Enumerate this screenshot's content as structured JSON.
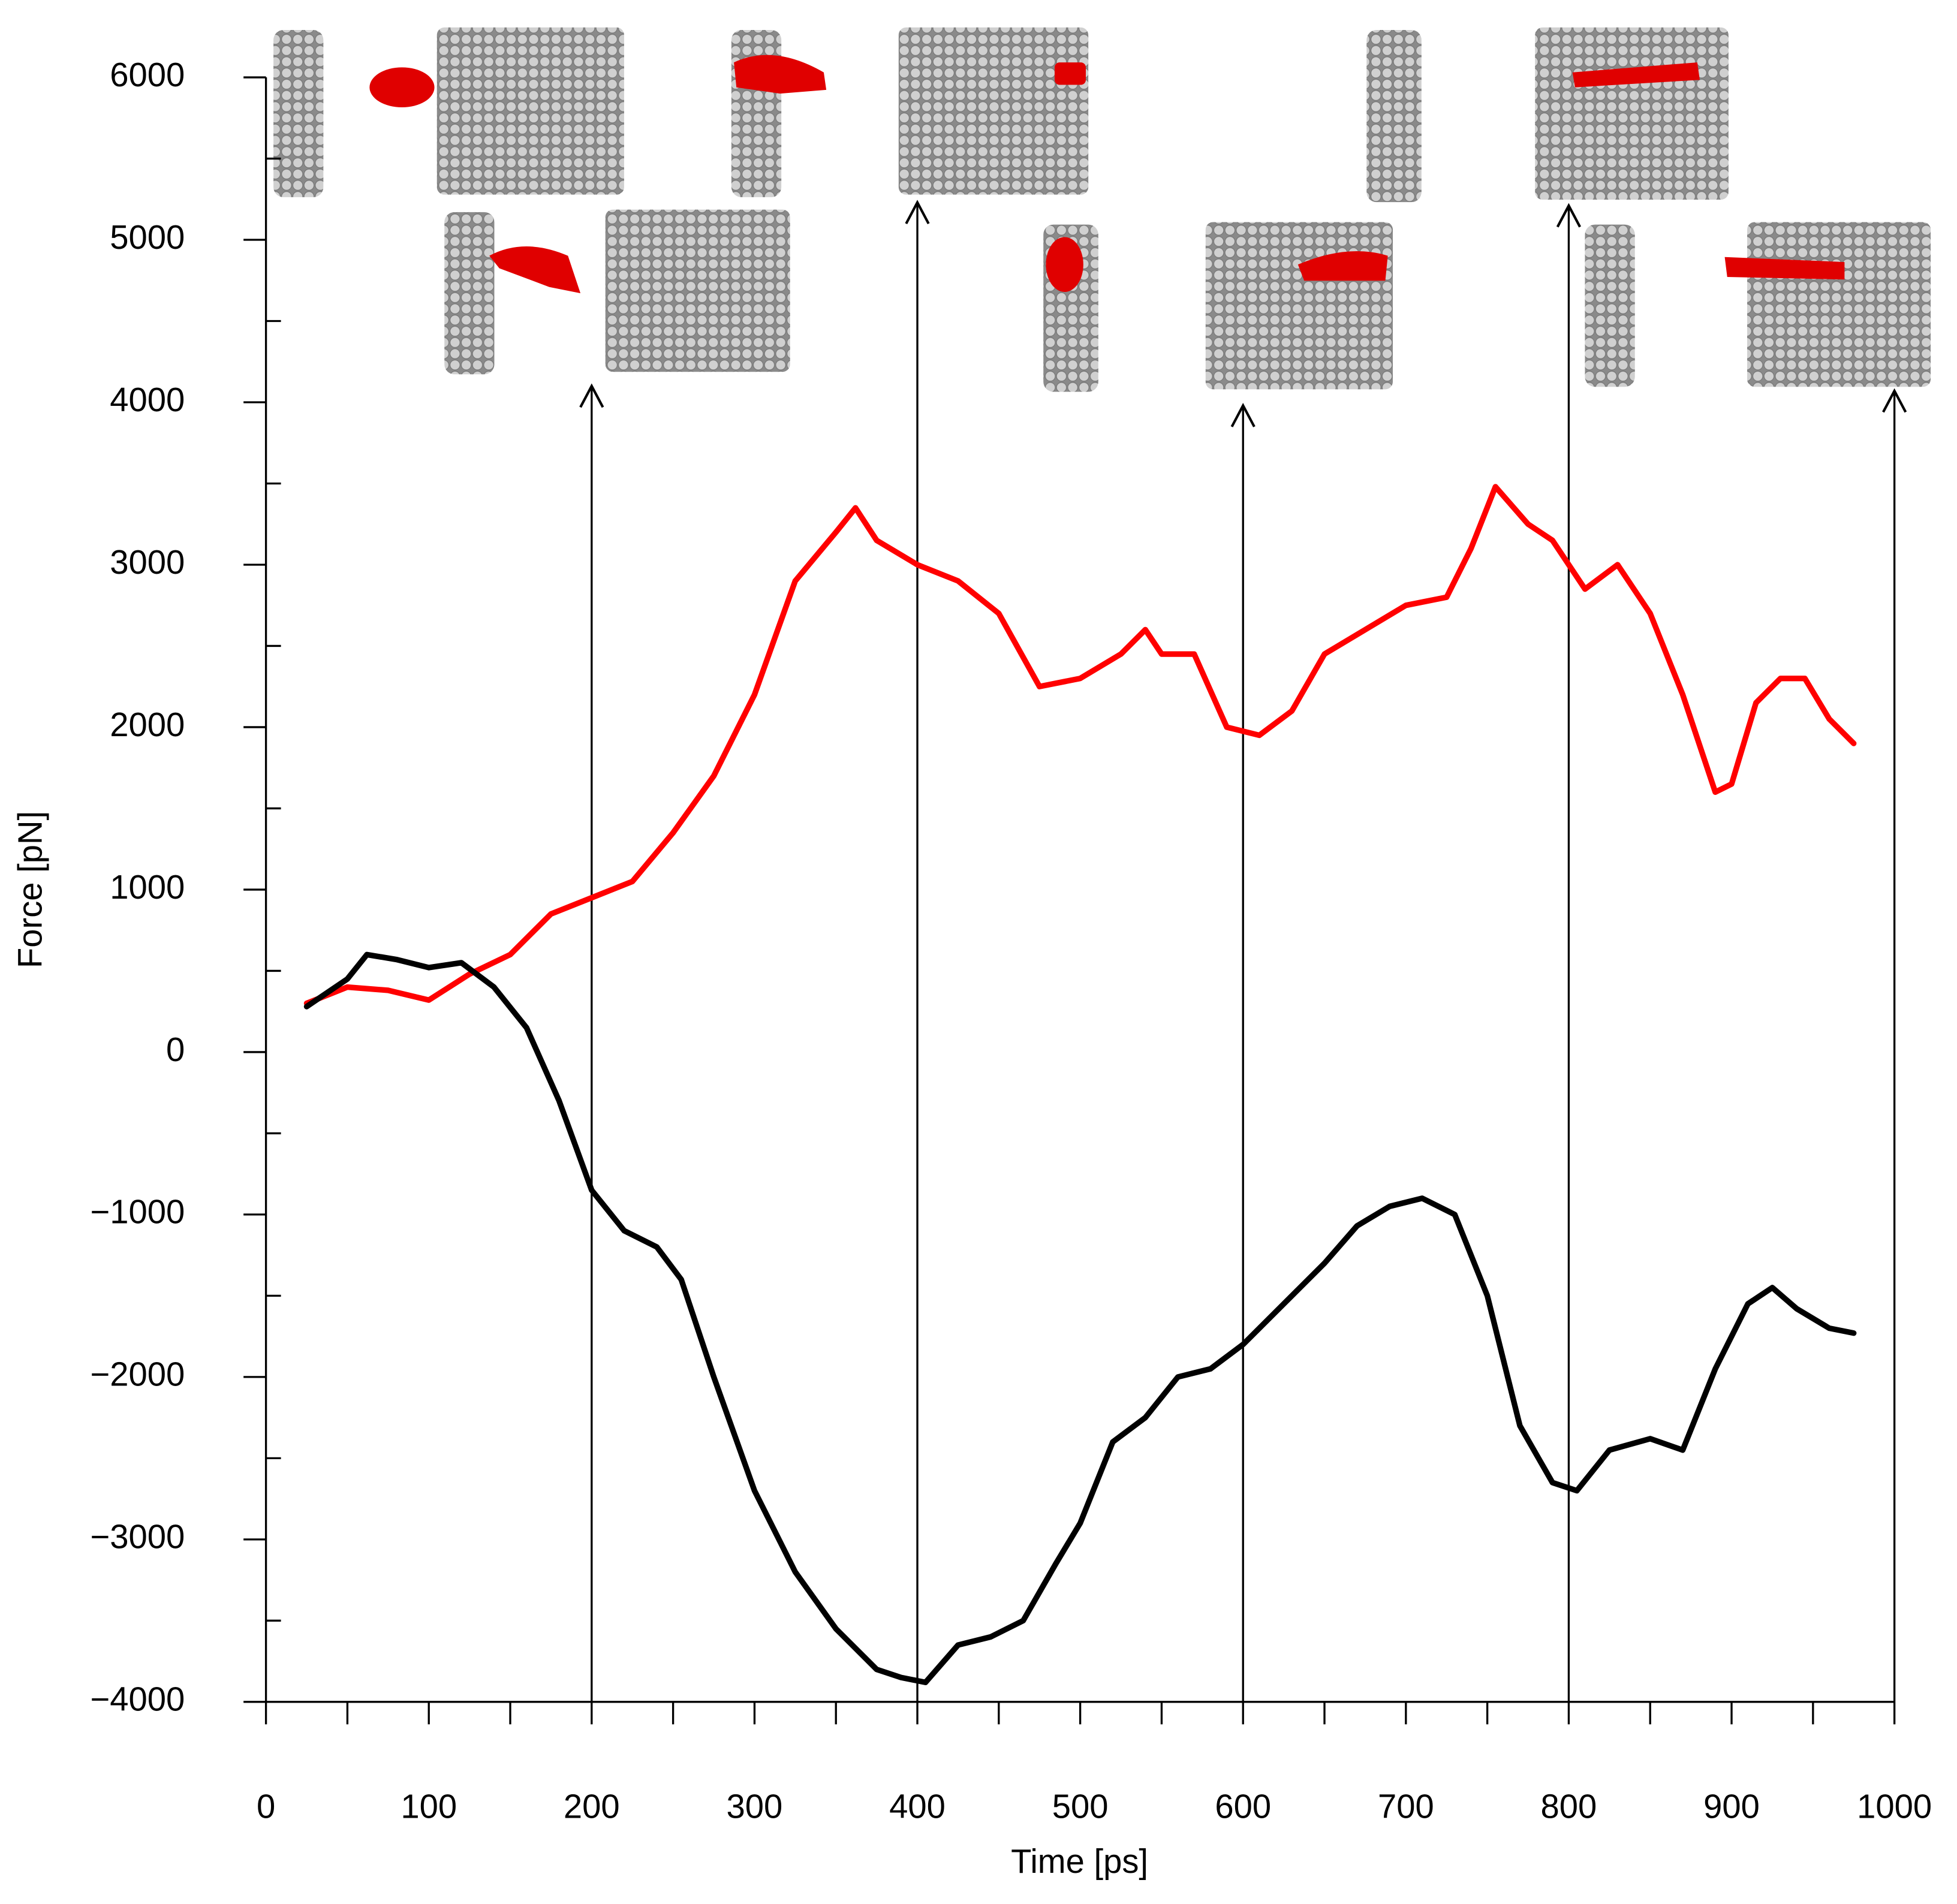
{
  "chart_data": {
    "type": "line",
    "x_label": "Time [ps]",
    "y_label": "Force [pN]",
    "xlim": [
      0,
      1000
    ],
    "ylim": [
      -4000,
      6000
    ],
    "xticks": [
      0,
      100,
      200,
      300,
      400,
      500,
      600,
      700,
      800,
      900,
      1000
    ],
    "xminorticks": [
      50,
      150,
      250,
      350,
      450,
      550,
      650,
      750,
      850,
      950
    ],
    "yticks": [
      {
        "value": -4000,
        "label": "−4000"
      },
      {
        "value": -3000,
        "label": "−3000"
      },
      {
        "value": -2000,
        "label": "−2000"
      },
      {
        "value": -1000,
        "label": "−1000"
      },
      0,
      1000,
      2000,
      3000,
      4000,
      5000,
      6000
    ],
    "yminorticks": [
      -3500,
      -2500,
      -1500,
      -500,
      500,
      1500,
      2500,
      3500,
      4500,
      5500
    ],
    "grid": false,
    "series": [
      {
        "color": "#ff0000",
        "x": [
          25,
          50,
          75,
          100,
          125,
          150,
          175,
          200,
          225,
          250,
          275,
          300,
          325,
          350,
          362,
          375,
          400,
          425,
          450,
          475,
          500,
          525,
          540,
          550,
          570,
          590,
          610,
          630,
          650,
          675,
          700,
          725,
          740,
          755,
          775,
          790,
          810,
          830,
          850,
          870,
          890,
          900,
          915,
          930,
          945,
          960,
          975
        ],
        "values": [
          300,
          400,
          380,
          320,
          480,
          600,
          850,
          950,
          1050,
          1350,
          1700,
          2200,
          2900,
          3200,
          3350,
          3150,
          3000,
          2900,
          2700,
          2250,
          2300,
          2450,
          2600,
          2450,
          2450,
          2000,
          1950,
          2100,
          2450,
          2600,
          2750,
          2800,
          3100,
          3480,
          3250,
          3150,
          2850,
          3000,
          2700,
          2200,
          1600,
          1650,
          2150,
          2300,
          2300,
          2050,
          1900
        ]
      },
      {
        "color": "#000000",
        "x": [
          25,
          50,
          62,
          80,
          100,
          120,
          140,
          160,
          180,
          200,
          220,
          240,
          255,
          275,
          300,
          325,
          350,
          375,
          390,
          405,
          425,
          445,
          465,
          485,
          500,
          520,
          540,
          560,
          580,
          600,
          625,
          650,
          670,
          690,
          710,
          730,
          750,
          770,
          790,
          805,
          825,
          850,
          870,
          890,
          910,
          925,
          940,
          960,
          975
        ],
        "values": [
          280,
          450,
          600,
          570,
          520,
          550,
          400,
          150,
          -300,
          -850,
          -1100,
          -1200,
          -1400,
          -2000,
          -2700,
          -3200,
          -3550,
          -3800,
          -3850,
          -3880,
          -3650,
          -3600,
          -3500,
          -3150,
          -2900,
          -2400,
          -2250,
          -2000,
          -1950,
          -1800,
          -1550,
          -1300,
          -1070,
          -950,
          -900,
          -1000,
          -1500,
          -2300,
          -2650,
          -2700,
          -2450,
          -2380,
          -2450,
          -1950,
          -1550,
          -1450,
          -1580,
          -1700,
          -1730
        ]
      }
    ],
    "arrows": [
      {
        "x": 200,
        "y_end": 4100
      },
      {
        "x": 400,
        "y_end": 5230
      },
      {
        "x": 600,
        "y_end": 3980
      },
      {
        "x": 800,
        "y_end": 5210
      },
      {
        "x": 1000,
        "y_end": 4070
      }
    ]
  }
}
